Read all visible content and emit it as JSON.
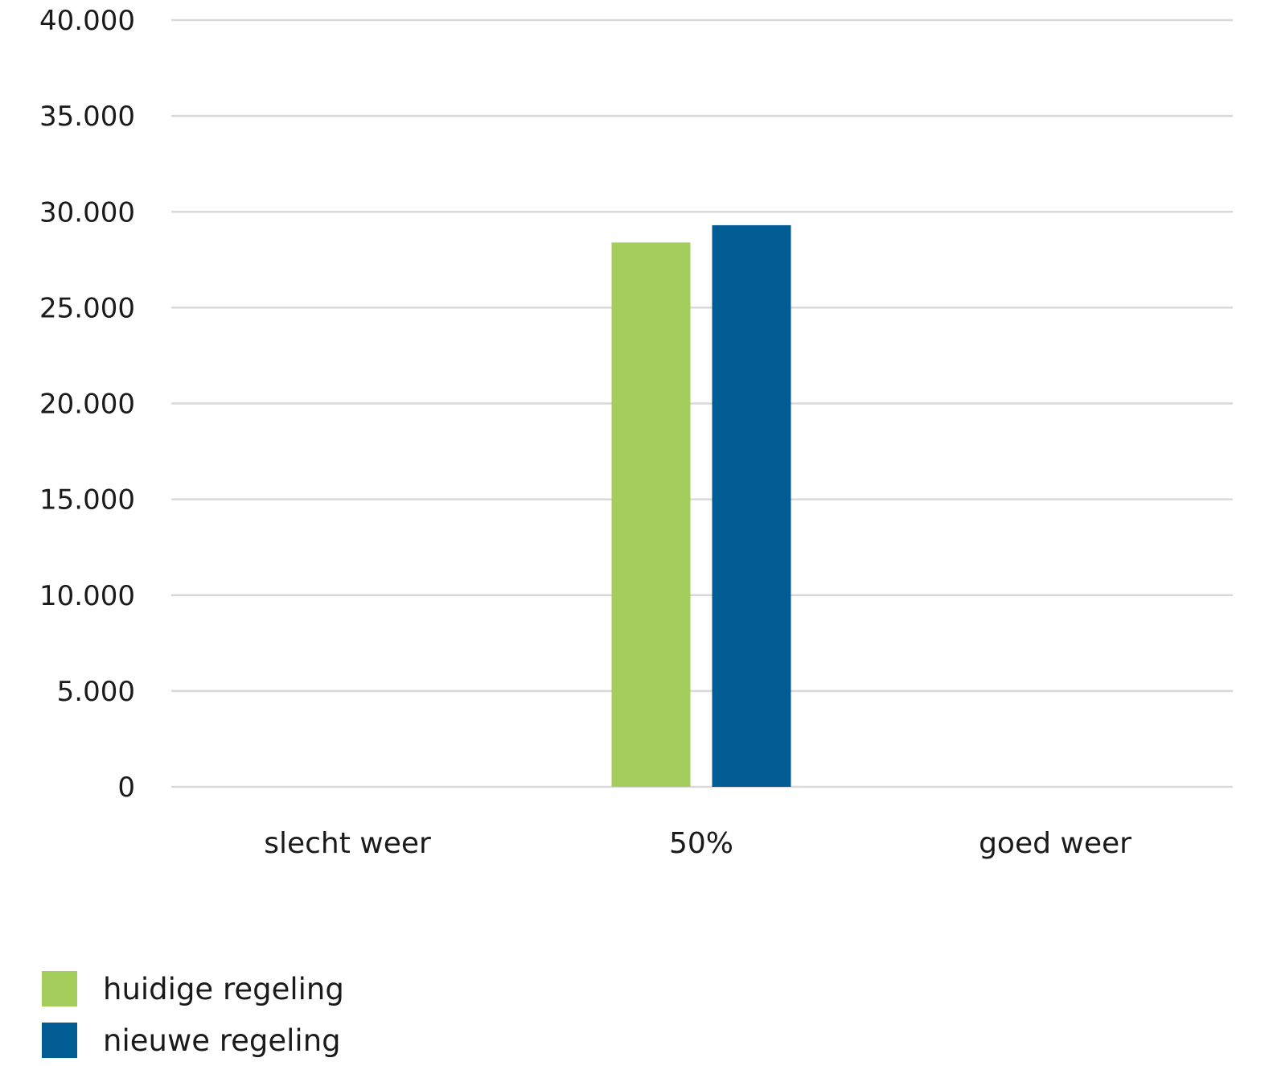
{
  "chart_data": {
    "type": "bar",
    "categories": [
      "slecht weer",
      "50%",
      "goed weer"
    ],
    "series": [
      {
        "name": "huidige regeling",
        "color": "#a5cd5c",
        "values": [
          null,
          28400,
          null
        ]
      },
      {
        "name": "nieuwe regeling",
        "color": "#015c93",
        "values": [
          null,
          29300,
          null
        ]
      }
    ],
    "ylim": [
      0,
      40000
    ],
    "yticks": [
      0,
      5000,
      10000,
      15000,
      20000,
      25000,
      30000,
      35000,
      40000
    ],
    "ytick_labels": [
      "0",
      "5.000",
      "10.000",
      "15.000",
      "20.000",
      "25.000",
      "30.000",
      "35.000",
      "40.000"
    ],
    "grid": true,
    "legend_position": "bottom-left",
    "title": "",
    "xlabel": "",
    "ylabel": ""
  }
}
